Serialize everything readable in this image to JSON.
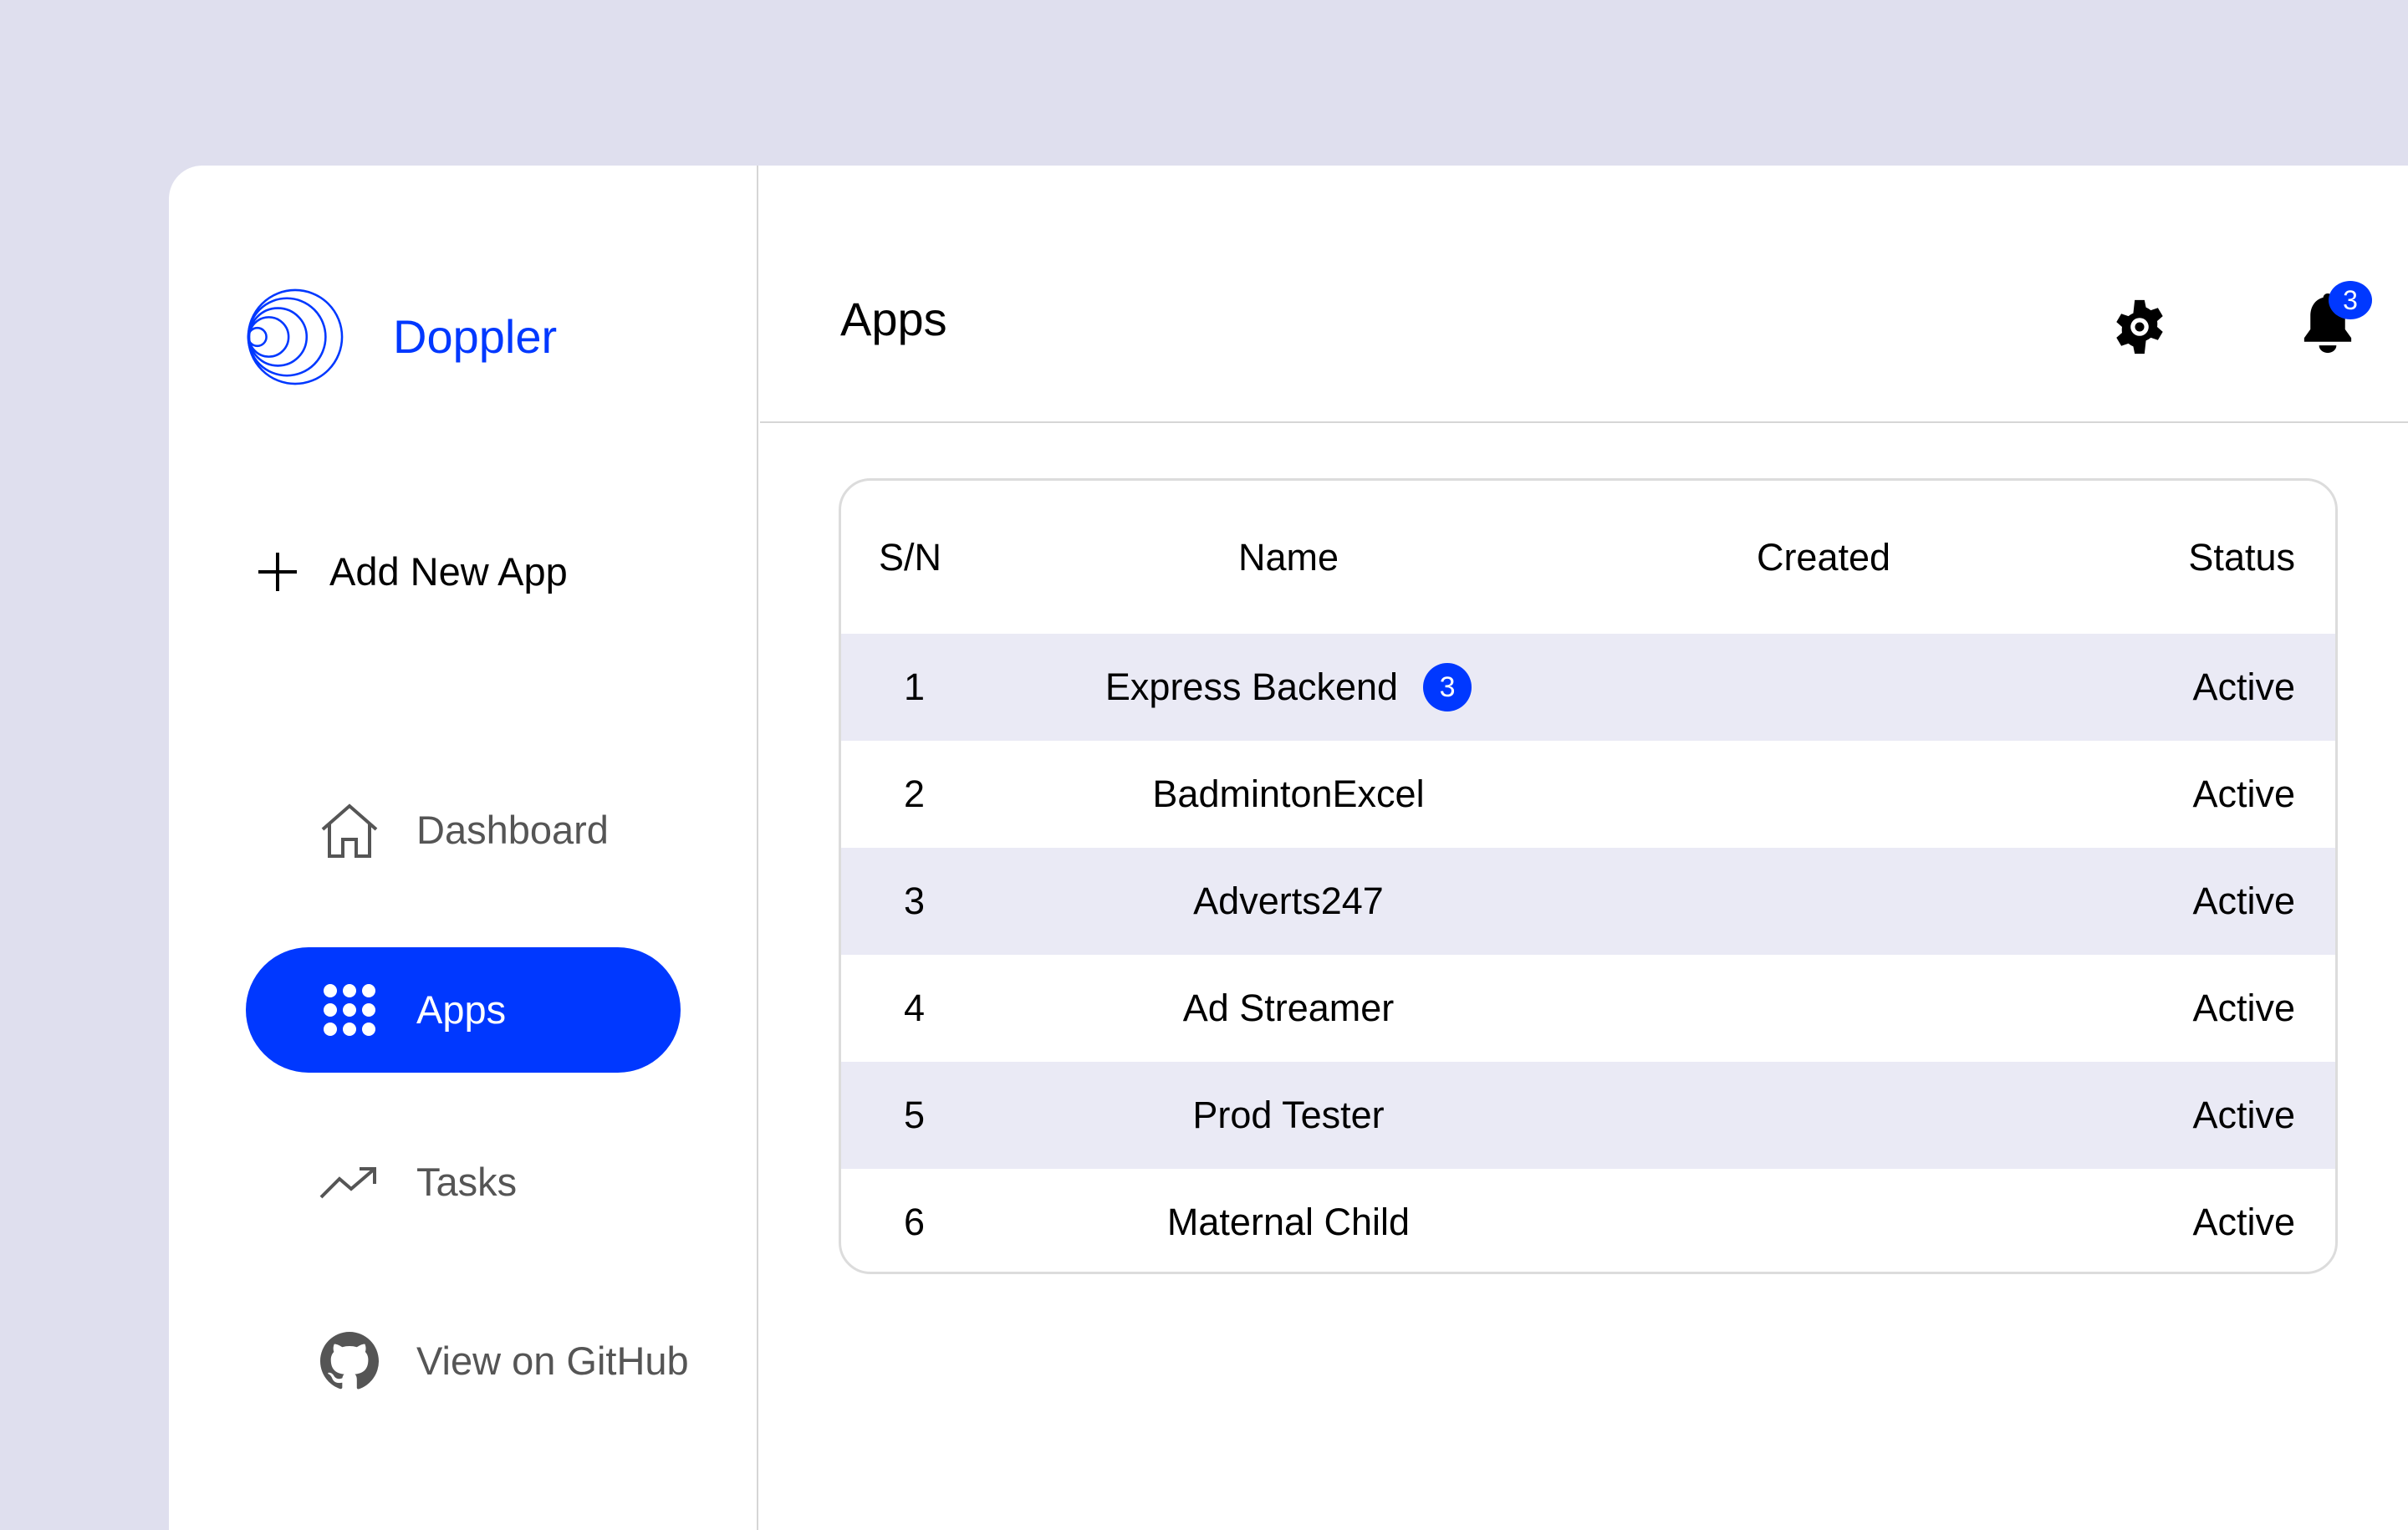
{
  "brand": {
    "name": "Doppler",
    "color": "#0038ff"
  },
  "sidebar": {
    "add_label": "Add New App",
    "items": [
      {
        "label": "Dashboard",
        "icon": "home-icon",
        "active": false
      },
      {
        "label": "Apps",
        "icon": "grid-icon",
        "active": true
      },
      {
        "label": "Tasks",
        "icon": "trend-up-icon",
        "active": false
      },
      {
        "label": "View on GitHub",
        "icon": "github-icon",
        "active": false
      }
    ]
  },
  "header": {
    "title": "Apps",
    "notifications": "3"
  },
  "table": {
    "columns": [
      "S/N",
      "Name",
      "Created",
      "Status"
    ],
    "rows": [
      {
        "sn": "1",
        "name": "Express Backend",
        "badge": "3",
        "created": "",
        "status": "Active"
      },
      {
        "sn": "2",
        "name": "BadmintonExcel",
        "created": "",
        "status": "Active"
      },
      {
        "sn": "3",
        "name": "Adverts247",
        "created": "",
        "status": "Active"
      },
      {
        "sn": "4",
        "name": "Ad Streamer",
        "created": "",
        "status": "Active"
      },
      {
        "sn": "5",
        "name": "Prod Tester",
        "created": "",
        "status": "Active"
      },
      {
        "sn": "6",
        "name": "Maternal Child",
        "created": "",
        "status": "Active"
      }
    ]
  }
}
